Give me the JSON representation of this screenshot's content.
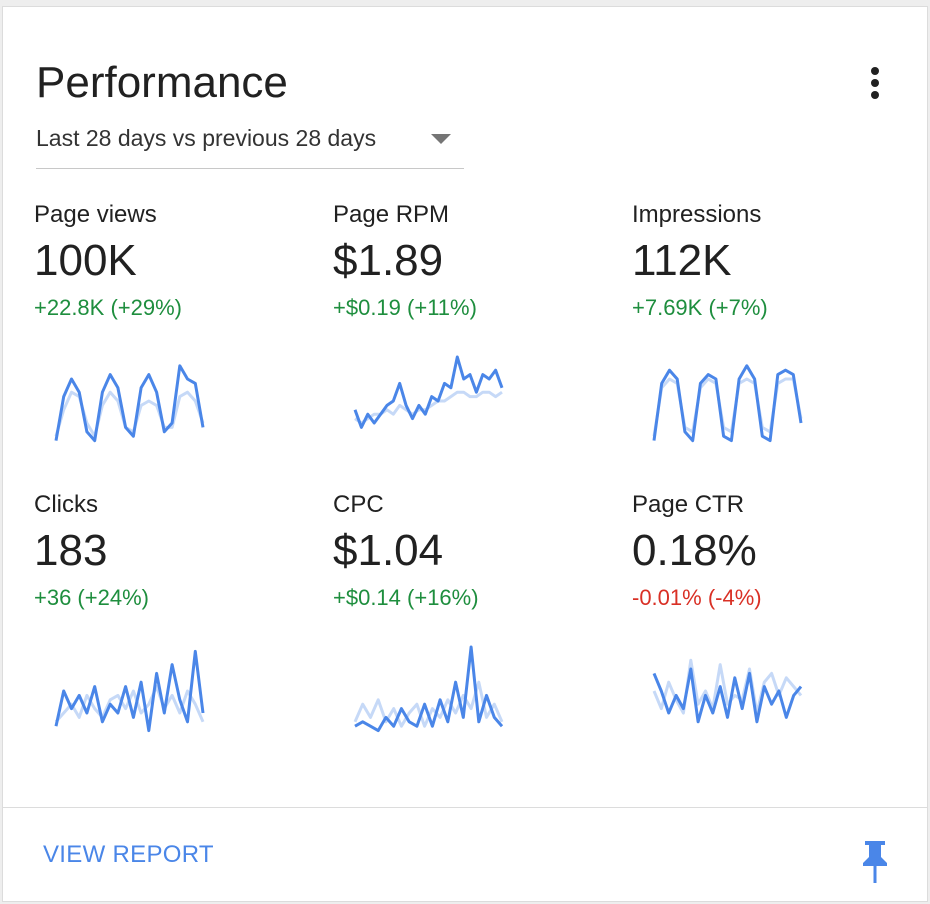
{
  "header": {
    "title": "Performance",
    "menu_icon": "more-vert-icon",
    "date_range": "Last 28 days vs previous 28 days",
    "dropdown_icon": "caret-down-icon"
  },
  "colors": {
    "positive": "#1e8e3e",
    "negative": "#d93025",
    "line_current": "#4a86e8",
    "line_previous": "#c6d9f7",
    "link": "#4a86e8"
  },
  "metrics": [
    {
      "label": "Page views",
      "value": "100K",
      "change": "+22.8K (+29%)",
      "trend": "positive",
      "current": [
        0.05,
        0.55,
        0.75,
        0.6,
        0.15,
        0.05,
        0.6,
        0.8,
        0.65,
        0.2,
        0.1,
        0.65,
        0.8,
        0.6,
        0.15,
        0.25,
        0.9,
        0.75,
        0.7,
        0.2
      ],
      "previous": [
        0.1,
        0.4,
        0.6,
        0.55,
        0.25,
        0.1,
        0.45,
        0.6,
        0.5,
        0.2,
        0.15,
        0.45,
        0.5,
        0.45,
        0.2,
        0.2,
        0.55,
        0.6,
        0.5,
        0.25
      ]
    },
    {
      "label": "Page RPM",
      "value": "$1.89",
      "change": "+$0.19 (+11%)",
      "trend": "positive",
      "current": [
        0.4,
        0.2,
        0.35,
        0.25,
        0.35,
        0.45,
        0.5,
        0.7,
        0.45,
        0.3,
        0.45,
        0.35,
        0.55,
        0.5,
        0.7,
        0.65,
        1.0,
        0.75,
        0.8,
        0.6,
        0.8,
        0.75,
        0.85,
        0.65
      ],
      "previous": [
        0.3,
        0.25,
        0.3,
        0.35,
        0.35,
        0.4,
        0.35,
        0.45,
        0.4,
        0.35,
        0.4,
        0.4,
        0.45,
        0.5,
        0.5,
        0.55,
        0.6,
        0.6,
        0.55,
        0.55,
        0.6,
        0.6,
        0.55,
        0.6
      ]
    },
    {
      "label": "Impressions",
      "value": "112K",
      "change": "+7.69K (+7%)",
      "trend": "positive",
      "current": [
        0.05,
        0.7,
        0.85,
        0.75,
        0.15,
        0.05,
        0.7,
        0.8,
        0.75,
        0.1,
        0.05,
        0.75,
        0.9,
        0.75,
        0.1,
        0.05,
        0.8,
        0.85,
        0.8,
        0.25
      ],
      "previous": [
        0.1,
        0.65,
        0.75,
        0.7,
        0.2,
        0.15,
        0.65,
        0.75,
        0.7,
        0.2,
        0.15,
        0.7,
        0.75,
        0.7,
        0.2,
        0.15,
        0.7,
        0.75,
        0.75,
        0.3
      ]
    },
    {
      "label": "Clicks",
      "value": "183",
      "change": "+36 (+24%)",
      "trend": "positive",
      "current": [
        0.1,
        0.5,
        0.3,
        0.45,
        0.25,
        0.55,
        0.15,
        0.35,
        0.25,
        0.55,
        0.2,
        0.6,
        0.05,
        0.7,
        0.25,
        0.8,
        0.4,
        0.15,
        0.95,
        0.25
      ],
      "previous": [
        0.15,
        0.25,
        0.35,
        0.2,
        0.45,
        0.3,
        0.2,
        0.4,
        0.45,
        0.3,
        0.5,
        0.25,
        0.35,
        0.55,
        0.3,
        0.45,
        0.25,
        0.5,
        0.35,
        0.15
      ]
    },
    {
      "label": "CPC",
      "value": "$1.04",
      "change": "+$0.14 (+16%)",
      "trend": "positive",
      "current": [
        0.1,
        0.15,
        0.1,
        0.05,
        0.2,
        0.1,
        0.3,
        0.15,
        0.1,
        0.35,
        0.1,
        0.4,
        0.15,
        0.6,
        0.2,
        1.0,
        0.15,
        0.45,
        0.2,
        0.1
      ],
      "previous": [
        0.15,
        0.35,
        0.2,
        0.4,
        0.15,
        0.3,
        0.1,
        0.25,
        0.35,
        0.1,
        0.3,
        0.2,
        0.4,
        0.25,
        0.45,
        0.3,
        0.6,
        0.2,
        0.35,
        0.15
      ]
    },
    {
      "label": "Page CTR",
      "value": "0.18%",
      "change": "-0.01% (-4%)",
      "trend": "negative",
      "current": [
        0.7,
        0.5,
        0.25,
        0.45,
        0.3,
        0.75,
        0.15,
        0.45,
        0.25,
        0.55,
        0.2,
        0.65,
        0.3,
        0.7,
        0.15,
        0.55,
        0.35,
        0.5,
        0.2,
        0.45,
        0.55
      ],
      "previous": [
        0.5,
        0.3,
        0.6,
        0.4,
        0.25,
        0.85,
        0.35,
        0.5,
        0.3,
        0.8,
        0.35,
        0.45,
        0.4,
        0.75,
        0.25,
        0.6,
        0.7,
        0.45,
        0.65,
        0.55,
        0.45
      ]
    }
  ],
  "footer": {
    "view_report": "VIEW REPORT",
    "pin_icon": "pin-icon"
  }
}
